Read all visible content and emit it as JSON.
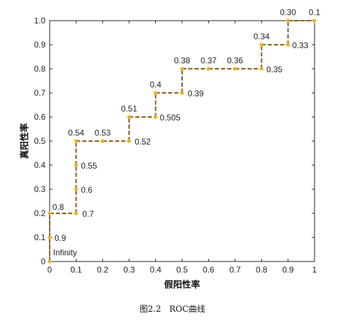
{
  "chart_data": {
    "type": "line",
    "xlabel": "假阳性率",
    "ylabel": "真阳性率",
    "caption": "图2.2　ROC曲线",
    "xlim": [
      0,
      1
    ],
    "ylim": [
      0,
      1
    ],
    "x_ticks": [
      "0",
      "0.1",
      "0.2",
      "0.3",
      "0.4",
      "0.5",
      "0.6",
      "0.7",
      "0.8",
      "0.9",
      "1"
    ],
    "y_ticks": [
      "0",
      "0.1",
      "0.2",
      "0.3",
      "0.4",
      "0.5",
      "0.6",
      "0.7",
      "0.8",
      "0.9",
      "1.0"
    ],
    "grid": false,
    "line_color": "#8B5A1E",
    "marker_color": "#E8B21F",
    "points": [
      {
        "x": 0,
        "y": 0,
        "label": "Infinity"
      },
      {
        "x": 0,
        "y": 0.1,
        "label": "0.9"
      },
      {
        "x": 0,
        "y": 0.2,
        "label": "0.8"
      },
      {
        "x": 0.1,
        "y": 0.2,
        "label": "0.7"
      },
      {
        "x": 0.1,
        "y": 0.3,
        "label": "0.6"
      },
      {
        "x": 0.1,
        "y": 0.4,
        "label": "0.55"
      },
      {
        "x": 0.1,
        "y": 0.5,
        "label": "0.54"
      },
      {
        "x": 0.2,
        "y": 0.5,
        "label": "0.53"
      },
      {
        "x": 0.3,
        "y": 0.5,
        "label": "0.52"
      },
      {
        "x": 0.3,
        "y": 0.6,
        "label": "0.51"
      },
      {
        "x": 0.4,
        "y": 0.6,
        "label": "0.505"
      },
      {
        "x": 0.4,
        "y": 0.7,
        "label": "0.4"
      },
      {
        "x": 0.5,
        "y": 0.7,
        "label": "0.39"
      },
      {
        "x": 0.5,
        "y": 0.8,
        "label": "0.38"
      },
      {
        "x": 0.6,
        "y": 0.8,
        "label": "0.37"
      },
      {
        "x": 0.7,
        "y": 0.8,
        "label": "0.36"
      },
      {
        "x": 0.8,
        "y": 0.8,
        "label": "0.35"
      },
      {
        "x": 0.8,
        "y": 0.9,
        "label": "0.34"
      },
      {
        "x": 0.9,
        "y": 0.9,
        "label": "0.33"
      },
      {
        "x": 0.9,
        "y": 1.0,
        "label": "0.30"
      },
      {
        "x": 1.0,
        "y": 1.0,
        "label": "0.1"
      }
    ]
  }
}
